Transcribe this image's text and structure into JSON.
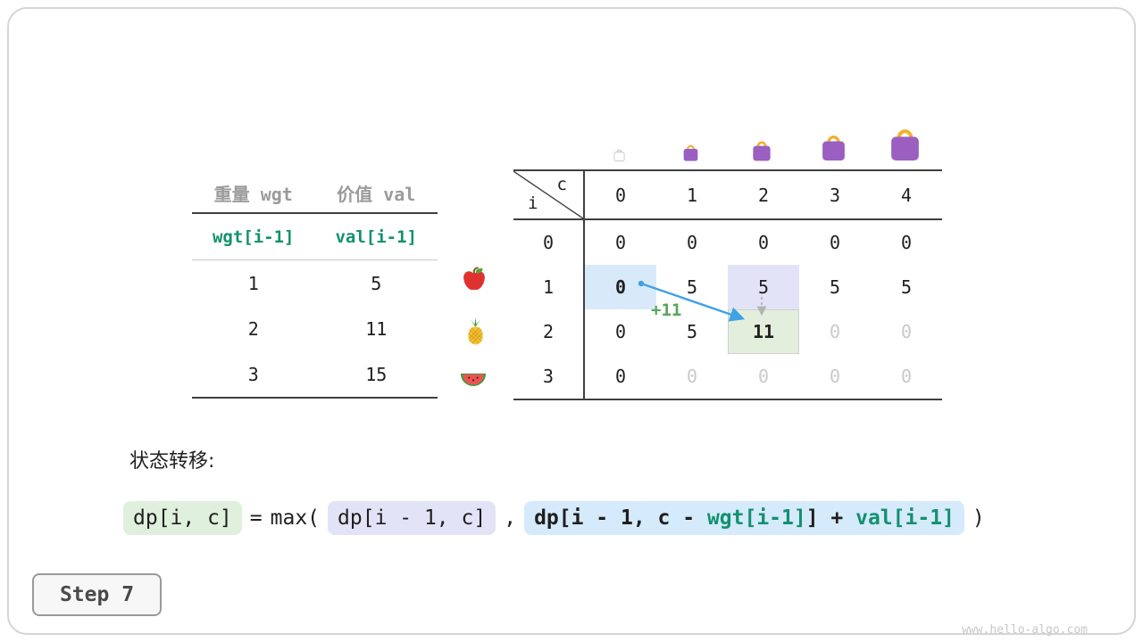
{
  "card": {
    "weights_table": {
      "headers": {
        "weight": "重量 wgt",
        "value": "价值 val"
      },
      "formula_row": {
        "weight": "wgt[i-1]",
        "value": "val[i-1]"
      },
      "rows": [
        {
          "wgt": "1",
          "val": "5",
          "fruit": "apple"
        },
        {
          "wgt": "2",
          "val": "11",
          "fruit": "pineapple"
        },
        {
          "wgt": "3",
          "val": "15",
          "fruit": "watermelon"
        }
      ]
    },
    "dp_table": {
      "corner_top": "c",
      "corner_side": "i",
      "col_headers": [
        "0",
        "1",
        "2",
        "3",
        "4"
      ],
      "rows": [
        {
          "header": "0",
          "cells": [
            {
              "v": "0"
            },
            {
              "v": "0"
            },
            {
              "v": "0"
            },
            {
              "v": "0"
            },
            {
              "v": "0"
            }
          ]
        },
        {
          "header": "1",
          "cells": [
            {
              "v": "0",
              "hl": "blue"
            },
            {
              "v": "5"
            },
            {
              "v": "5",
              "hl": "lavender"
            },
            {
              "v": "5"
            },
            {
              "v": "5"
            }
          ]
        },
        {
          "header": "2",
          "cells": [
            {
              "v": "0"
            },
            {
              "v": "5"
            },
            {
              "v": "11",
              "hl": "green",
              "bold": true
            },
            {
              "v": "0",
              "gray": true
            },
            {
              "v": "0",
              "gray": true
            }
          ]
        },
        {
          "header": "3",
          "cells": [
            {
              "v": "0"
            },
            {
              "v": "0",
              "gray": true
            },
            {
              "v": "0",
              "gray": true
            },
            {
              "v": "0",
              "gray": true
            },
            {
              "v": "0",
              "gray": true
            }
          ]
        }
      ],
      "arrow_gain_label": "+11"
    },
    "transition": {
      "title": "状态转移:",
      "formula": {
        "chip_current": "dp[i, c]",
        "op_eq": "=",
        "op_max": "max(",
        "chip_keep": "dp[i - 1, c]",
        "op_comma": ",",
        "chip_take_prefix": "dp[i - 1, c - ",
        "chip_take_wgt": "wgt[i-1]",
        "chip_take_mid": "] + ",
        "chip_take_val": "val[i-1]",
        "op_close": ")"
      }
    },
    "step_label": "Step 7",
    "watermark": "www.hello-algo.com"
  },
  "colors": {
    "teal_text": "#12916f",
    "green_label": "#57a65a",
    "arrow_blue": "#3ea2e5",
    "hl_blue": "#d8eafa",
    "hl_lavender": "#e3e3f8",
    "hl_green": "#e3efdc",
    "chip_green_bg": "#dff0dd",
    "chip_lavender_bg": "#e3e3f8",
    "chip_blue_bg": "#d5eafb",
    "bag_purple": "#9a5fc0",
    "bag_handle": "#f2b02f",
    "gray_value": "#c9c9c9"
  }
}
